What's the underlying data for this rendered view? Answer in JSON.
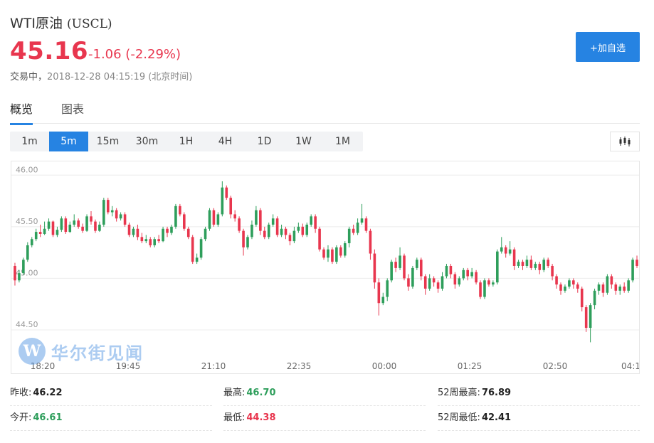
{
  "header": {
    "name": "WTI原油",
    "code": "(USCL)",
    "price": "45.16",
    "change": "-1.06 (-2.29%)",
    "status_label": "交易中，",
    "timestamp": "2018-12-28 04:15:19 (北京时间)",
    "add_button": "+加自选"
  },
  "tabs": [
    {
      "label": "概览",
      "active": true
    },
    {
      "label": "图表",
      "active": false
    }
  ],
  "periods": [
    {
      "label": "1m",
      "active": false
    },
    {
      "label": "5m",
      "active": true
    },
    {
      "label": "15m",
      "active": false
    },
    {
      "label": "30m",
      "active": false
    },
    {
      "label": "1H",
      "active": false
    },
    {
      "label": "4H",
      "active": false
    },
    {
      "label": "1D",
      "active": false
    },
    {
      "label": "1W",
      "active": false
    },
    {
      "label": "1M",
      "active": false
    }
  ],
  "watermark": "华尔街见闻",
  "colors": {
    "up": "#2e9e5b",
    "down": "#e8364e",
    "accent": "#2683e2"
  },
  "chart_data": {
    "type": "candlestick",
    "y_ticks": [
      "46.00",
      "45.50",
      "45.00",
      "44.50"
    ],
    "x_ticks": [
      "18:20",
      "19:45",
      "21:10",
      "22:35",
      "00:00",
      "01:25",
      "02:50",
      "04:1"
    ],
    "ylim": [
      44.3,
      46.05
    ],
    "grid": true,
    "series": [
      [
        45.12,
        44.98,
        45.15,
        44.93
      ],
      [
        44.98,
        45.05,
        45.08,
        44.96
      ],
      [
        45.05,
        45.18,
        45.2,
        45.03
      ],
      [
        45.18,
        45.32,
        45.35,
        45.16
      ],
      [
        45.32,
        45.38,
        45.4,
        45.3
      ],
      [
        45.38,
        45.45,
        45.48,
        45.36
      ],
      [
        45.45,
        45.43,
        45.52,
        45.4
      ],
      [
        45.43,
        45.48,
        45.55,
        45.42
      ],
      [
        45.48,
        45.55,
        45.58,
        45.46
      ],
      [
        45.55,
        45.42,
        45.56,
        45.4
      ],
      [
        45.42,
        45.47,
        45.5,
        45.4
      ],
      [
        45.47,
        45.58,
        45.6,
        45.45
      ],
      [
        45.58,
        45.45,
        45.6,
        45.43
      ],
      [
        45.45,
        45.52,
        45.55,
        45.44
      ],
      [
        45.52,
        45.56,
        45.62,
        45.5
      ],
      [
        45.56,
        45.5,
        45.58,
        45.48
      ],
      [
        45.5,
        45.46,
        45.53,
        45.44
      ],
      [
        45.46,
        45.6,
        45.62,
        45.45
      ],
      [
        45.6,
        45.55,
        45.65,
        45.52
      ],
      [
        45.55,
        45.46,
        45.57,
        45.44
      ],
      [
        45.46,
        45.52,
        45.55,
        45.45
      ],
      [
        45.52,
        45.76,
        45.78,
        45.5
      ],
      [
        45.76,
        45.64,
        45.78,
        45.62
      ],
      [
        45.64,
        45.66,
        45.7,
        45.6
      ],
      [
        45.66,
        45.58,
        45.68,
        45.55
      ],
      [
        45.58,
        45.62,
        45.64,
        45.56
      ],
      [
        45.62,
        45.52,
        45.64,
        45.5
      ],
      [
        45.52,
        45.42,
        45.54,
        45.4
      ],
      [
        45.42,
        45.48,
        45.5,
        45.4
      ],
      [
        45.48,
        45.4,
        45.52,
        45.37
      ],
      [
        45.4,
        45.36,
        45.44,
        45.34
      ],
      [
        45.36,
        45.38,
        45.42,
        45.34
      ],
      [
        45.38,
        45.32,
        45.4,
        45.3
      ],
      [
        45.32,
        45.38,
        45.4,
        45.3
      ],
      [
        45.38,
        45.36,
        45.42,
        45.34
      ],
      [
        45.36,
        45.48,
        45.5,
        45.35
      ],
      [
        45.48,
        45.44,
        45.5,
        45.4
      ],
      [
        45.44,
        45.5,
        45.52,
        45.42
      ],
      [
        45.5,
        45.7,
        45.72,
        45.48
      ],
      [
        45.7,
        45.62,
        45.72,
        45.6
      ],
      [
        45.62,
        45.48,
        45.64,
        45.46
      ],
      [
        45.48,
        45.4,
        45.5,
        45.38
      ],
      [
        45.4,
        45.16,
        45.42,
        45.14
      ],
      [
        45.16,
        45.2,
        45.24,
        45.14
      ],
      [
        45.2,
        45.38,
        45.4,
        45.18
      ],
      [
        45.38,
        45.48,
        45.5,
        45.36
      ],
      [
        45.48,
        45.66,
        45.68,
        45.46
      ],
      [
        45.66,
        45.52,
        45.68,
        45.5
      ],
      [
        45.52,
        45.62,
        45.64,
        45.5
      ],
      [
        45.62,
        45.88,
        45.94,
        45.6
      ],
      [
        45.88,
        45.78,
        45.9,
        45.76
      ],
      [
        45.78,
        45.62,
        45.8,
        45.58
      ],
      [
        45.62,
        45.58,
        45.66,
        45.55
      ],
      [
        45.58,
        45.46,
        45.6,
        45.44
      ],
      [
        45.46,
        45.3,
        45.48,
        45.22
      ],
      [
        45.3,
        45.4,
        45.42,
        45.28
      ],
      [
        45.4,
        45.52,
        45.56,
        45.38
      ],
      [
        45.52,
        45.66,
        45.7,
        45.5
      ],
      [
        45.66,
        45.46,
        45.68,
        45.42
      ],
      [
        45.46,
        45.4,
        45.5,
        45.38
      ],
      [
        45.4,
        45.52,
        45.54,
        45.38
      ],
      [
        45.52,
        45.58,
        45.62,
        45.5
      ],
      [
        45.58,
        45.42,
        45.6,
        45.4
      ],
      [
        45.42,
        45.48,
        45.52,
        45.4
      ],
      [
        45.48,
        45.42,
        45.5,
        45.38
      ],
      [
        45.42,
        45.36,
        45.44,
        45.32
      ],
      [
        45.36,
        45.46,
        45.5,
        45.34
      ],
      [
        45.46,
        45.5,
        45.54,
        45.44
      ],
      [
        45.5,
        45.42,
        45.53,
        45.4
      ],
      [
        45.42,
        45.52,
        45.54,
        45.4
      ],
      [
        45.52,
        45.6,
        45.62,
        45.5
      ],
      [
        45.6,
        45.48,
        45.62,
        45.44
      ],
      [
        45.48,
        45.28,
        45.5,
        45.26
      ],
      [
        45.28,
        45.2,
        45.3,
        45.18
      ],
      [
        45.2,
        45.28,
        45.32,
        45.16
      ],
      [
        45.28,
        45.16,
        45.3,
        45.14
      ],
      [
        45.16,
        45.3,
        45.32,
        45.14
      ],
      [
        45.3,
        45.22,
        45.32,
        45.2
      ],
      [
        45.22,
        45.34,
        45.36,
        45.2
      ],
      [
        45.34,
        45.48,
        45.5,
        45.3
      ],
      [
        45.48,
        45.44,
        45.52,
        45.42
      ],
      [
        45.44,
        45.54,
        45.58,
        45.42
      ],
      [
        45.54,
        45.58,
        45.72,
        45.52
      ],
      [
        45.58,
        45.46,
        45.6,
        45.44
      ],
      [
        45.46,
        45.24,
        45.48,
        45.18
      ],
      [
        45.24,
        44.96,
        45.28,
        44.9
      ],
      [
        44.96,
        44.76,
        45.0,
        44.64
      ],
      [
        44.76,
        44.82,
        44.86,
        44.74
      ],
      [
        44.82,
        44.98,
        45.0,
        44.78
      ],
      [
        44.98,
        45.16,
        45.18,
        44.96
      ],
      [
        45.16,
        45.1,
        45.2,
        45.06
      ],
      [
        45.1,
        45.22,
        45.3,
        45.08
      ],
      [
        45.22,
        45.0,
        45.24,
        44.98
      ],
      [
        45.0,
        44.92,
        45.04,
        44.88
      ],
      [
        44.92,
        45.1,
        45.12,
        44.9
      ],
      [
        45.1,
        45.18,
        45.2,
        45.08
      ],
      [
        45.18,
        45.02,
        45.2,
        44.98
      ],
      [
        45.02,
        44.9,
        45.04,
        44.84
      ],
      [
        44.9,
        45.0,
        45.04,
        44.88
      ],
      [
        45.0,
        44.96,
        45.02,
        44.92
      ],
      [
        44.96,
        44.9,
        44.98,
        44.86
      ],
      [
        44.9,
        45.02,
        45.06,
        44.88
      ],
      [
        45.02,
        45.12,
        45.14,
        45.0
      ],
      [
        45.12,
        45.04,
        45.14,
        45.0
      ],
      [
        45.04,
        44.94,
        45.06,
        44.9
      ],
      [
        44.94,
        45.0,
        45.02,
        44.92
      ],
      [
        45.0,
        45.08,
        45.1,
        44.98
      ],
      [
        45.08,
        45.02,
        45.1,
        44.98
      ],
      [
        45.02,
        45.06,
        45.1,
        45.0
      ],
      [
        45.06,
        44.96,
        45.08,
        44.94
      ],
      [
        44.96,
        44.82,
        44.98,
        44.8
      ],
      [
        44.82,
        44.98,
        45.0,
        44.8
      ],
      [
        44.98,
        44.94,
        45.0,
        44.92
      ],
      [
        44.94,
        44.96,
        44.98,
        44.92
      ],
      [
        44.96,
        45.26,
        45.28,
        44.94
      ],
      [
        45.26,
        45.3,
        45.4,
        45.24
      ],
      [
        45.3,
        45.24,
        45.32,
        45.2
      ],
      [
        45.24,
        45.28,
        45.36,
        45.22
      ],
      [
        45.28,
        45.12,
        45.3,
        45.08
      ],
      [
        45.12,
        45.16,
        45.18,
        45.1
      ],
      [
        45.16,
        45.12,
        45.18,
        45.08
      ],
      [
        45.12,
        45.18,
        45.22,
        45.1
      ],
      [
        45.18,
        45.1,
        45.22,
        45.08
      ],
      [
        45.1,
        45.14,
        45.16,
        45.08
      ],
      [
        45.14,
        45.08,
        45.16,
        45.04
      ],
      [
        45.08,
        45.18,
        45.2,
        45.06
      ],
      [
        45.18,
        45.12,
        45.2,
        45.1
      ],
      [
        45.12,
        45.02,
        45.14,
        44.98
      ],
      [
        45.02,
        44.94,
        45.04,
        44.9
      ],
      [
        44.94,
        44.88,
        44.96,
        44.84
      ],
      [
        44.88,
        44.92,
        44.94,
        44.86
      ],
      [
        44.92,
        44.98,
        45.0,
        44.9
      ],
      [
        44.98,
        44.94,
        45.0,
        44.9
      ],
      [
        44.94,
        44.9,
        44.96,
        44.86
      ],
      [
        44.9,
        44.72,
        44.92,
        44.68
      ],
      [
        44.72,
        44.52,
        44.74,
        44.48
      ],
      [
        44.52,
        44.74,
        44.76,
        44.38
      ],
      [
        44.74,
        44.88,
        44.9,
        44.7
      ],
      [
        44.88,
        44.94,
        44.96,
        44.84
      ],
      [
        44.94,
        44.86,
        44.96,
        44.82
      ],
      [
        44.86,
        45.02,
        45.04,
        44.84
      ],
      [
        45.02,
        44.94,
        45.04,
        44.9
      ],
      [
        44.94,
        44.88,
        44.96,
        44.84
      ],
      [
        44.88,
        44.92,
        44.94,
        44.84
      ],
      [
        44.92,
        44.88,
        44.96,
        44.86
      ],
      [
        44.88,
        44.98,
        45.0,
        44.86
      ],
      [
        44.98,
        45.18,
        45.2,
        44.96
      ],
      [
        45.18,
        45.12,
        45.22,
        45.1
      ]
    ]
  },
  "stats": [
    {
      "label": "昨收:",
      "value": "46.22",
      "tone": "neutral"
    },
    {
      "label": "最高:",
      "value": "46.70",
      "tone": "up"
    },
    {
      "label": "52周最高:",
      "value": "76.89",
      "tone": "neutral"
    },
    {
      "label": "今开:",
      "value": "46.61",
      "tone": "up"
    },
    {
      "label": "最低:",
      "value": "44.38",
      "tone": "down"
    },
    {
      "label": "52周最低:",
      "value": "42.41",
      "tone": "neutral"
    }
  ]
}
